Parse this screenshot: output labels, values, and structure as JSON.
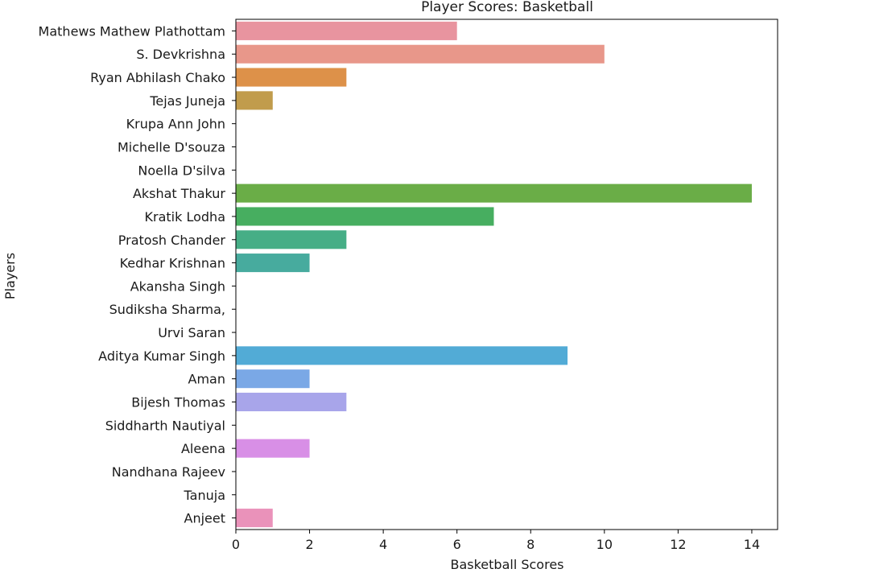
{
  "chart_data": {
    "type": "bar",
    "orientation": "horizontal",
    "title": "Player Scores: Basketball",
    "xlabel": "Basketball Scores",
    "ylabel": "Players",
    "xlim": [
      0,
      14.7
    ],
    "xticks": [
      0,
      2,
      4,
      6,
      8,
      10,
      12,
      14
    ],
    "grid": false,
    "categories": [
      "Mathews Mathew Plathottam",
      "S. Devkrishna",
      "Ryan Abhilash Chako",
      "Tejas Juneja",
      "Krupa Ann John",
      "Michelle D'souza",
      "Noella D'silva",
      "Akshat Thakur",
      "Kratik Lodha",
      "Pratosh Chander",
      "Kedhar Krishnan",
      "Akansha Singh",
      "Sudiksha Sharma,",
      "Urvi Saran",
      "Aditya Kumar Singh",
      "Aman",
      "Bijesh Thomas",
      "Siddharth Nautiyal",
      "Aleena",
      "Nandhana Rajeev",
      "Tanuja",
      "Anjeet"
    ],
    "values": [
      6,
      10,
      3,
      1,
      0,
      0,
      0,
      14,
      7,
      3,
      2,
      0,
      0,
      0,
      9,
      2,
      3,
      0,
      2,
      0,
      0,
      1
    ],
    "colors": [
      "#e8949f",
      "#e8978a",
      "#dd9149",
      "#c19c4c",
      "#b1a13f",
      "#9fa63a",
      "#8aab3b",
      "#6aad47",
      "#47ae60",
      "#46ae86",
      "#47ab9e",
      "#48aab1",
      "#4aa8c0",
      "#4da7cf",
      "#52abd6",
      "#7aa8e6",
      "#a8a5ea",
      "#c69de8",
      "#d88fe6",
      "#e28fd2",
      "#e891bf",
      "#ea92ba"
    ]
  }
}
